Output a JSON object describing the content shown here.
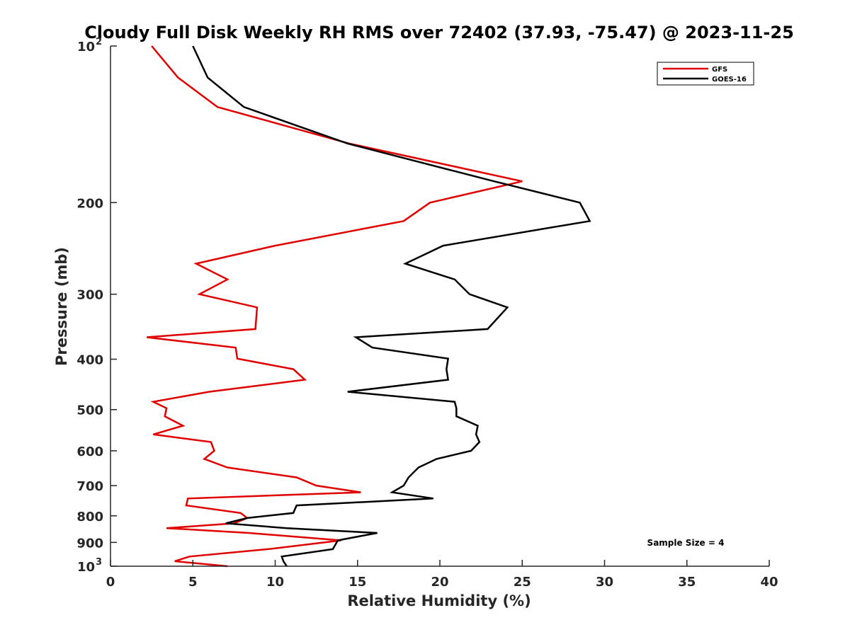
{
  "chart_data": {
    "type": "line",
    "title": "Cloudy Full Disk Weekly RH RMS over 72402 (37.93, -75.47) @ 2023-11-25",
    "xlabel": "Relative Humidity (%)",
    "ylabel": "Pressure (mb)",
    "xlim": [
      0,
      40
    ],
    "ylim": [
      100,
      1000
    ],
    "yscale": "log",
    "y_reversed": true,
    "grid": false,
    "legend_position": "top-right",
    "x_ticks": [
      "0",
      "5",
      "10",
      "15",
      "20",
      "25",
      "30",
      "35",
      "40"
    ],
    "y_ticks": [
      {
        "value": 100,
        "base": "10",
        "exp": "2"
      },
      {
        "value": 200,
        "label": "200"
      },
      {
        "value": 300,
        "label": "300"
      },
      {
        "value": 400,
        "label": "400"
      },
      {
        "value": 500,
        "label": "500"
      },
      {
        "value": 600,
        "label": "600"
      },
      {
        "value": 700,
        "label": "700"
      },
      {
        "value": 800,
        "label": "800"
      },
      {
        "value": 900,
        "label": "900"
      },
      {
        "value": 1000,
        "base": "10",
        "exp": "3"
      }
    ],
    "annotation": "Sample Size = 4",
    "series": [
      {
        "name": "GFS",
        "color": "#e00000",
        "points": [
          [
            2.5,
            100
          ],
          [
            4.1,
            115
          ],
          [
            6.5,
            131
          ],
          [
            14.5,
            154
          ],
          [
            25.0,
            182
          ],
          [
            19.4,
            200
          ],
          [
            17.8,
            217
          ],
          [
            10.0,
            242
          ],
          [
            5.2,
            262
          ],
          [
            7.1,
            281
          ],
          [
            5.4,
            300
          ],
          [
            8.9,
            318
          ],
          [
            8.8,
            350
          ],
          [
            2.2,
            363
          ],
          [
            7.6,
            380
          ],
          [
            7.7,
            399
          ],
          [
            11.1,
            418
          ],
          [
            11.8,
            438
          ],
          [
            6.0,
            462
          ],
          [
            2.6,
            483
          ],
          [
            3.4,
            497
          ],
          [
            3.3,
            515
          ],
          [
            4.4,
            537
          ],
          [
            2.6,
            558
          ],
          [
            6.1,
            577
          ],
          [
            6.3,
            600
          ],
          [
            5.7,
            622
          ],
          [
            7.1,
            646
          ],
          [
            11.3,
            675
          ],
          [
            12.5,
            700
          ],
          [
            15.2,
            721
          ],
          [
            4.7,
            741
          ],
          [
            4.6,
            764
          ],
          [
            7.9,
            790
          ],
          [
            8.3,
            808
          ],
          [
            7.5,
            827
          ],
          [
            3.4,
            845
          ],
          [
            8.4,
            863
          ],
          [
            14.0,
            892
          ],
          [
            9.6,
            927
          ],
          [
            4.8,
            958
          ],
          [
            3.9,
            978
          ],
          [
            7.1,
            1000
          ]
        ]
      },
      {
        "name": "GOES-16",
        "color": "#000000",
        "points": [
          [
            5.0,
            100
          ],
          [
            5.9,
            115
          ],
          [
            8.1,
            131
          ],
          [
            14.4,
            154
          ],
          [
            23.3,
            182
          ],
          [
            28.5,
            200
          ],
          [
            29.1,
            217
          ],
          [
            20.2,
            242
          ],
          [
            17.9,
            262
          ],
          [
            20.9,
            281
          ],
          [
            21.8,
            300
          ],
          [
            24.1,
            318
          ],
          [
            22.9,
            350
          ],
          [
            14.9,
            363
          ],
          [
            15.9,
            380
          ],
          [
            20.5,
            399
          ],
          [
            20.4,
            418
          ],
          [
            20.5,
            438
          ],
          [
            14.4,
            462
          ],
          [
            20.9,
            483
          ],
          [
            21.0,
            497
          ],
          [
            21.0,
            515
          ],
          [
            22.3,
            537
          ],
          [
            22.2,
            558
          ],
          [
            22.4,
            577
          ],
          [
            21.9,
            600
          ],
          [
            19.8,
            622
          ],
          [
            18.7,
            646
          ],
          [
            18.1,
            675
          ],
          [
            17.8,
            700
          ],
          [
            17.1,
            721
          ],
          [
            19.6,
            741
          ],
          [
            11.3,
            764
          ],
          [
            11.1,
            790
          ],
          [
            8.3,
            808
          ],
          [
            7.0,
            827
          ],
          [
            10.7,
            845
          ],
          [
            16.2,
            863
          ],
          [
            13.8,
            892
          ],
          [
            13.5,
            927
          ],
          [
            10.4,
            958
          ],
          [
            10.5,
            978
          ],
          [
            10.7,
            1000
          ]
        ]
      }
    ]
  }
}
